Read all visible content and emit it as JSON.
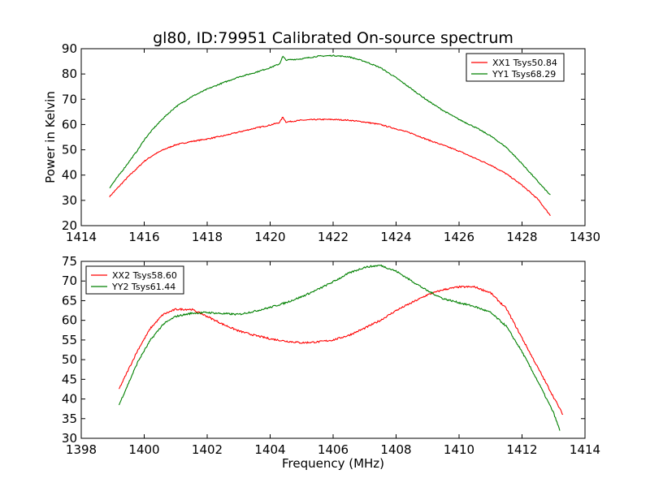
{
  "figure": {
    "title": "gl80, ID:79951 Calibrated On-source spectrum"
  },
  "chart_data": [
    {
      "type": "line",
      "title": "gl80, ID:79951 Calibrated On-source spectrum",
      "xlabel": "",
      "ylabel": "Power in Kelvin",
      "xlim": [
        1414,
        1430
      ],
      "ylim": [
        20,
        90
      ],
      "xticks": [
        1414,
        1416,
        1418,
        1420,
        1422,
        1424,
        1426,
        1428,
        1430
      ],
      "yticks": [
        20,
        30,
        40,
        50,
        60,
        70,
        80,
        90
      ],
      "grid": false,
      "legend": "top-right",
      "series": [
        {
          "name": "XX1 Tsys50.84",
          "color": "#ff0000",
          "x": [
            1414.9,
            1415.2,
            1415.5,
            1415.8,
            1416.0,
            1416.3,
            1416.6,
            1417.0,
            1417.5,
            1418.0,
            1418.5,
            1419.0,
            1419.5,
            1420.0,
            1420.3,
            1420.4,
            1420.5,
            1421.0,
            1421.5,
            1422.0,
            1422.5,
            1423.0,
            1423.5,
            1424.0,
            1424.5,
            1425.0,
            1425.5,
            1426.0,
            1426.5,
            1427.0,
            1427.5,
            1428.0,
            1428.5,
            1428.9
          ],
          "y": [
            31.5,
            35.5,
            39.5,
            43.0,
            45.5,
            48.0,
            50.0,
            52.0,
            53.3,
            54.3,
            55.5,
            57.0,
            58.5,
            59.8,
            60.8,
            63.0,
            61.0,
            61.7,
            62.0,
            62.0,
            61.7,
            61.0,
            60.0,
            58.3,
            56.5,
            54.0,
            51.8,
            49.5,
            46.7,
            44.0,
            40.5,
            36.0,
            30.5,
            24.0
          ]
        },
        {
          "name": "YY1 Tsys68.29",
          "color": "#008000",
          "x": [
            1414.9,
            1415.2,
            1415.5,
            1415.8,
            1416.0,
            1416.3,
            1416.6,
            1417.0,
            1417.5,
            1418.0,
            1418.5,
            1419.0,
            1419.5,
            1420.0,
            1420.3,
            1420.4,
            1420.5,
            1421.0,
            1421.5,
            1422.0,
            1422.5,
            1423.0,
            1423.5,
            1424.0,
            1424.5,
            1425.0,
            1425.5,
            1426.0,
            1426.5,
            1427.0,
            1427.5,
            1428.0,
            1428.5,
            1428.9
          ],
          "y": [
            35.0,
            40.0,
            45.0,
            50.0,
            54.0,
            58.5,
            62.5,
            67.0,
            71.0,
            74.0,
            76.5,
            78.8,
            80.5,
            82.5,
            84.0,
            87.0,
            85.5,
            86.0,
            87.0,
            87.3,
            86.8,
            85.0,
            82.5,
            78.5,
            74.0,
            69.5,
            65.5,
            62.0,
            59.0,
            55.5,
            51.0,
            44.5,
            37.5,
            32.0
          ]
        }
      ]
    },
    {
      "type": "line",
      "title": "",
      "xlabel": "Frequency (MHz)",
      "ylabel": "",
      "xlim": [
        1398,
        1414
      ],
      "ylim": [
        30,
        75
      ],
      "xticks": [
        1398,
        1400,
        1402,
        1404,
        1406,
        1408,
        1410,
        1412,
        1414
      ],
      "yticks": [
        30,
        35,
        40,
        45,
        50,
        55,
        60,
        65,
        70,
        75
      ],
      "grid": false,
      "legend": "top-left",
      "series": [
        {
          "name": "XX2 Tsys58.60",
          "color": "#ff0000",
          "x": [
            1399.2,
            1399.5,
            1399.8,
            1400.2,
            1400.6,
            1401.0,
            1401.5,
            1402.0,
            1402.5,
            1403.0,
            1403.5,
            1404.0,
            1404.5,
            1405.0,
            1405.5,
            1406.0,
            1406.5,
            1407.0,
            1407.5,
            1408.0,
            1408.5,
            1409.0,
            1409.5,
            1410.0,
            1410.5,
            1411.0,
            1411.5,
            1412.0,
            1412.5,
            1413.0,
            1413.3
          ],
          "y": [
            42.5,
            47.5,
            52.5,
            58.0,
            61.5,
            62.8,
            62.8,
            61.0,
            59.0,
            57.3,
            56.2,
            55.3,
            54.7,
            54.3,
            54.5,
            55.0,
            56.2,
            58.0,
            60.0,
            62.5,
            64.5,
            66.5,
            67.8,
            68.5,
            68.5,
            67.0,
            63.0,
            55.5,
            48.0,
            40.5,
            36.0
          ]
        },
        {
          "name": "YY2 Tsys61.44",
          "color": "#008000",
          "x": [
            1399.2,
            1399.5,
            1399.8,
            1400.2,
            1400.6,
            1401.0,
            1401.5,
            1402.0,
            1402.5,
            1403.0,
            1403.5,
            1404.0,
            1404.5,
            1405.0,
            1405.5,
            1406.0,
            1406.5,
            1407.0,
            1407.5,
            1408.0,
            1408.5,
            1409.0,
            1409.5,
            1410.0,
            1410.5,
            1411.0,
            1411.5,
            1412.0,
            1412.5,
            1413.0,
            1413.2
          ],
          "y": [
            38.5,
            44.0,
            49.5,
            55.0,
            59.0,
            61.0,
            61.8,
            62.0,
            61.7,
            61.5,
            62.3,
            63.3,
            64.5,
            66.0,
            67.8,
            69.8,
            72.0,
            73.5,
            74.0,
            72.5,
            70.0,
            67.5,
            65.5,
            64.5,
            63.5,
            62.0,
            58.5,
            52.0,
            44.5,
            36.5,
            32.0
          ]
        }
      ]
    }
  ]
}
